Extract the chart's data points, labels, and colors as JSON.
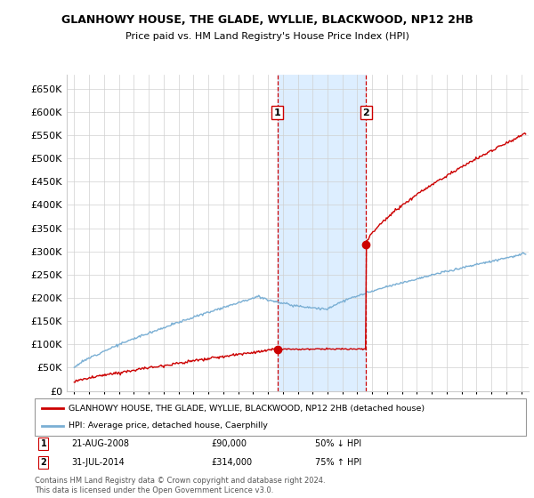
{
  "title": "GLANHOWY HOUSE, THE GLADE, WYLLIE, BLACKWOOD, NP12 2HB",
  "subtitle": "Price paid vs. HM Land Registry's House Price Index (HPI)",
  "sale1_x": 2008.64,
  "sale1_y": 90000,
  "sale1_text": "21-AUG-2008",
  "sale1_price": "£90,000",
  "sale1_hpi": "50% ↓ HPI",
  "sale2_x": 2014.58,
  "sale2_y": 314000,
  "sale2_text": "31-JUL-2014",
  "sale2_price": "£314,000",
  "sale2_hpi": "75% ↑ HPI",
  "red_line_color": "#cc0000",
  "blue_line_color": "#7aafd4",
  "shaded_region_color": "#ddeeff",
  "dashed_line_color": "#cc0000",
  "legend_label_red": "GLANHOWY HOUSE, THE GLADE, WYLLIE, BLACKWOOD, NP12 2HB (detached house)",
  "legend_label_blue": "HPI: Average price, detached house, Caerphilly",
  "footer": "Contains HM Land Registry data © Crown copyright and database right 2024.\nThis data is licensed under the Open Government Licence v3.0.",
  "ylim": [
    0,
    680000
  ],
  "xlim_start": 1994.5,
  "xlim_end": 2025.5,
  "ytick_step": 50000
}
